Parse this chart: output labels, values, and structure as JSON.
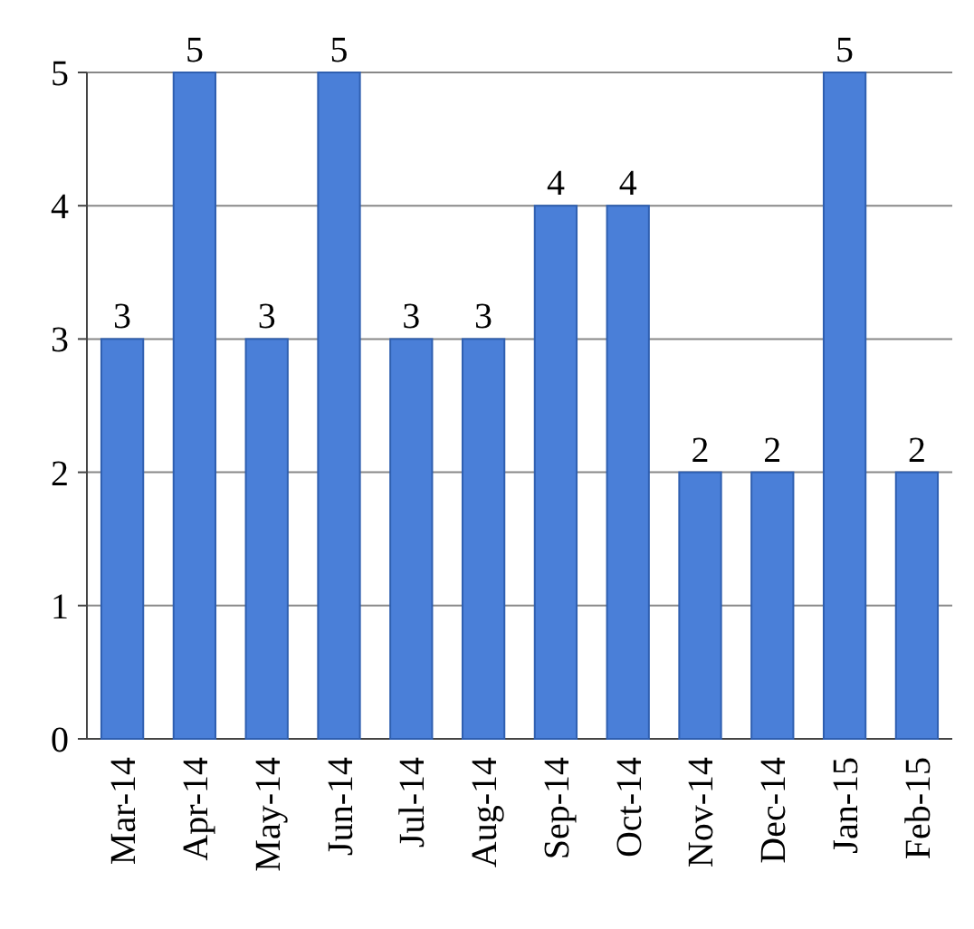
{
  "chart_data": {
    "type": "bar",
    "categories": [
      "Mar-14",
      "Apr-14",
      "May-14",
      "Jun-14",
      "Jul-14",
      "Aug-14",
      "Sep-14",
      "Oct-14",
      "Nov-14",
      "Dec-14",
      "Jan-15",
      "Feb-15"
    ],
    "values": [
      3,
      5,
      3,
      5,
      3,
      3,
      4,
      4,
      2,
      2,
      5,
      2
    ],
    "color": "#4a7fd8",
    "ylim": [
      0,
      5
    ],
    "yticks": [
      0,
      1,
      2,
      3,
      4,
      5
    ],
    "grid": "y",
    "data_labels": true
  }
}
